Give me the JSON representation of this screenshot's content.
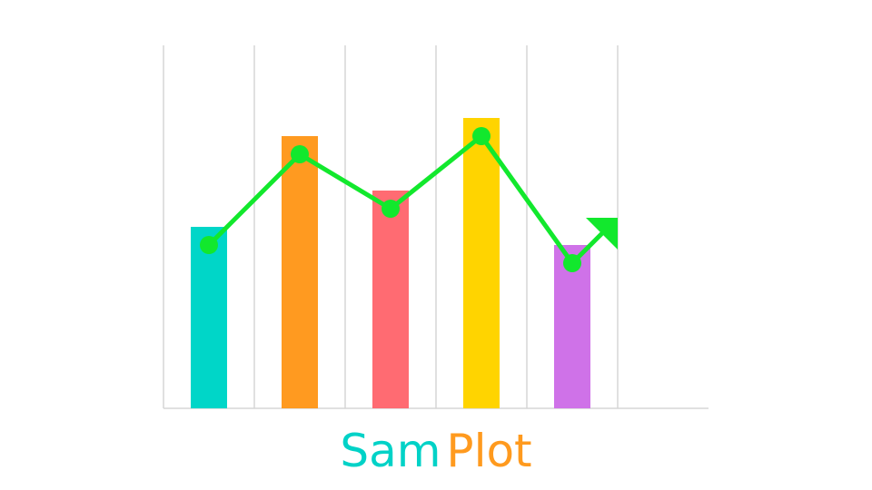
{
  "logo": {
    "name_part1": "Sam",
    "name_part2": "Plot",
    "colors": {
      "name_part1": "#00d2c7",
      "name_part2": "#ff9a1e",
      "line": "#12e82d",
      "grid": "#d6d6d6"
    },
    "chart_data": {
      "type": "bar",
      "categories": [
        "",
        "",
        "",
        "",
        ""
      ],
      "values": [
        50,
        75,
        60,
        80,
        45
      ],
      "bar_colors": [
        "#00d6c8",
        "#ff9a20",
        "#ff6b72",
        "#ffd400",
        "#cf72e8"
      ],
      "line_values": [
        45,
        70,
        55,
        75,
        40
      ],
      "ylim": [
        0,
        100
      ],
      "grid": true,
      "trend_arrow": "up"
    }
  }
}
